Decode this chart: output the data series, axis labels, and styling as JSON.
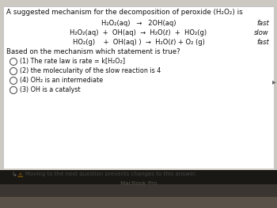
{
  "bg_color_white": "#e8e4e0",
  "bg_color_dark": "#1c1a18",
  "bg_color_macbook_bar": "#2a2520",
  "bg_color_keyboard": "#5a5248",
  "bg_color_footer": "#d0c8c0",
  "macbook_text": "MacBook Pro",
  "macbook_color": "#555048",
  "title_line": "A suggested mechanism for the decomposition of peroxide (H₂O₂) is",
  "reactions": [
    {
      "eq": "H₂O₂(aq)   →   2OH(aq)",
      "label": "fast"
    },
    {
      "eq": "H₂O₂(aq)  +  OH(aq)  →  H₂O(ℓ)  +  HO₂(g)",
      "label": "slow"
    },
    {
      "eq": "HO₂(g)    +  OH(aq) )  →  H₂O(ℓ) + O₂ (g)",
      "label": "fast"
    }
  ],
  "question": "Based on the mechanism which statement is true?",
  "options": [
    "(1) The rate law is rate = k[H₂O₂]",
    "(2) the molecularity of the slow reaction is 4",
    "(4) OH₂ is an intermediate",
    "(3) OH is a catalyst"
  ],
  "footer": "Moving to the next question prevents changes to this answer.",
  "warning_icon": "⚠",
  "arrow_prefix": "↳"
}
